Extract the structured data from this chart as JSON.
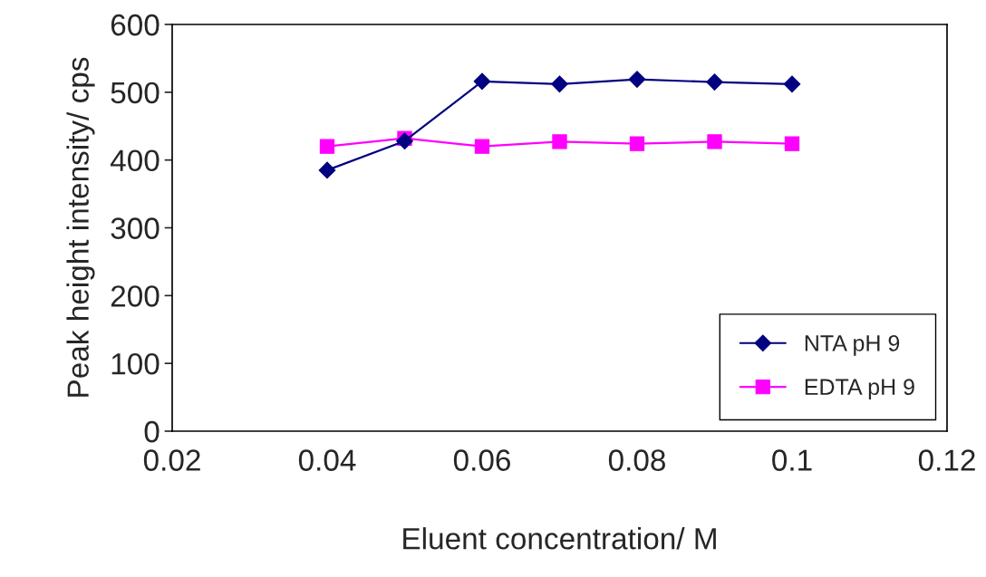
{
  "chart_data": {
    "type": "line",
    "xlabel": "Eluent concentration/ M",
    "ylabel": "Peak height intensity/ cps",
    "x": [
      0.04,
      0.05,
      0.06,
      0.07,
      0.08,
      0.09,
      0.1
    ],
    "series": [
      {
        "name": "NTA pH 9",
        "color": "#000080",
        "marker": "diamond",
        "values": [
          385,
          428,
          516,
          512,
          519,
          515,
          512
        ]
      },
      {
        "name": "EDTA pH 9",
        "color": "#ff00ff",
        "marker": "square",
        "values": [
          420,
          432,
          420,
          427,
          424,
          427,
          424
        ]
      }
    ],
    "xlim": [
      0.02,
      0.12
    ],
    "xticks": [
      0.02,
      0.04,
      0.06,
      0.08,
      0.1,
      0.12
    ],
    "ylim": [
      0,
      600
    ],
    "yticks": [
      0,
      100,
      200,
      300,
      400,
      500,
      600
    ],
    "grid": false,
    "legend": "bottom right"
  }
}
